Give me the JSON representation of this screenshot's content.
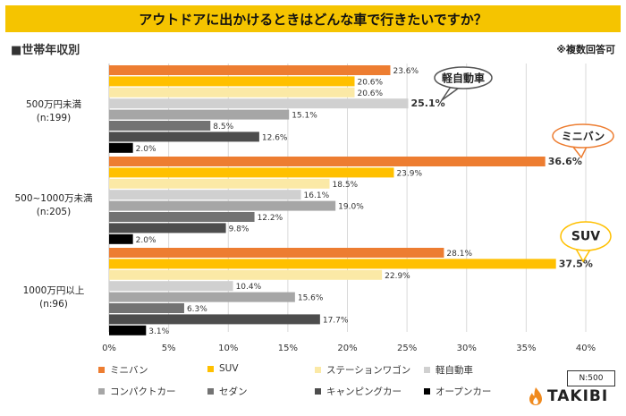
{
  "title": "アウトドアに出かけるときはどんな車で行きたいですか？",
  "subtitle": "■世帯年収別",
  "note": "※複数回答可",
  "sample_size": "N:500",
  "logo_text": "TAKIBI",
  "colors": {
    "title_bg": "#f5c400",
    "minivan": "#ed7d31",
    "suv": "#ffc000",
    "station_wagon": "#fbe9a6",
    "kei": "#d0d0d0",
    "compact": "#a6a6a6",
    "sedan": "#737373",
    "camping": "#4d4d4d",
    "open": "#000000",
    "logo_flame": "#f08a1e"
  },
  "chart_data": {
    "type": "bar",
    "orientation": "horizontal",
    "xlim": [
      0,
      40
    ],
    "xticks": [
      "0%",
      "5%",
      "10%",
      "15%",
      "20%",
      "25%",
      "30%",
      "35%",
      "40%"
    ],
    "groups": [
      {
        "label_line1": "500万円未満",
        "label_line2": "(n:199)"
      },
      {
        "label_line1": "500~1000万未満",
        "label_line2": "(n:205)"
      },
      {
        "label_line1": "1000万円以上",
        "label_line2": "(n:96)"
      }
    ],
    "series": [
      {
        "name": "ミニバン",
        "color_key": "minivan",
        "values": [
          23.6,
          36.6,
          28.1
        ],
        "labels": [
          "23.6%",
          "36.6%",
          "28.1%"
        ]
      },
      {
        "name": "SUV",
        "color_key": "suv",
        "values": [
          20.6,
          23.9,
          37.5
        ],
        "labels": [
          "20.6%",
          "23.9%",
          "37.5%"
        ]
      },
      {
        "name": "ステーションワゴン",
        "color_key": "station_wagon",
        "values": [
          20.6,
          18.5,
          22.9
        ],
        "labels": [
          "20.6%",
          "18.5%",
          "22.9%"
        ]
      },
      {
        "name": "軽自動車",
        "color_key": "kei",
        "values": [
          25.1,
          16.1,
          10.4
        ],
        "labels": [
          "25.1%",
          "16.1%",
          "10.4%"
        ]
      },
      {
        "name": "コンパクトカー",
        "color_key": "compact",
        "values": [
          15.1,
          19.0,
          15.6
        ],
        "labels": [
          "15.1%",
          "19.0%",
          "15.6%"
        ]
      },
      {
        "name": "セダン",
        "color_key": "sedan",
        "values": [
          8.5,
          12.2,
          6.3
        ],
        "labels": [
          "8.5%",
          "12.2%",
          "6.3%"
        ]
      },
      {
        "name": "キャンピングカー",
        "color_key": "camping",
        "values": [
          12.6,
          9.8,
          17.7
        ],
        "labels": [
          "12.6%",
          "9.8%",
          "17.7%"
        ]
      },
      {
        "name": "オープンカー",
        "color_key": "open",
        "values": [
          2.0,
          2.0,
          3.1
        ],
        "labels": [
          "2.0%",
          "2.0%",
          "3.1%"
        ]
      }
    ],
    "highlights": [
      {
        "group": 0,
        "series": 3,
        "callout": "軽自動車"
      },
      {
        "group": 1,
        "series": 0,
        "callout": "ミニバン"
      },
      {
        "group": 2,
        "series": 1,
        "callout": "SUV"
      }
    ]
  }
}
